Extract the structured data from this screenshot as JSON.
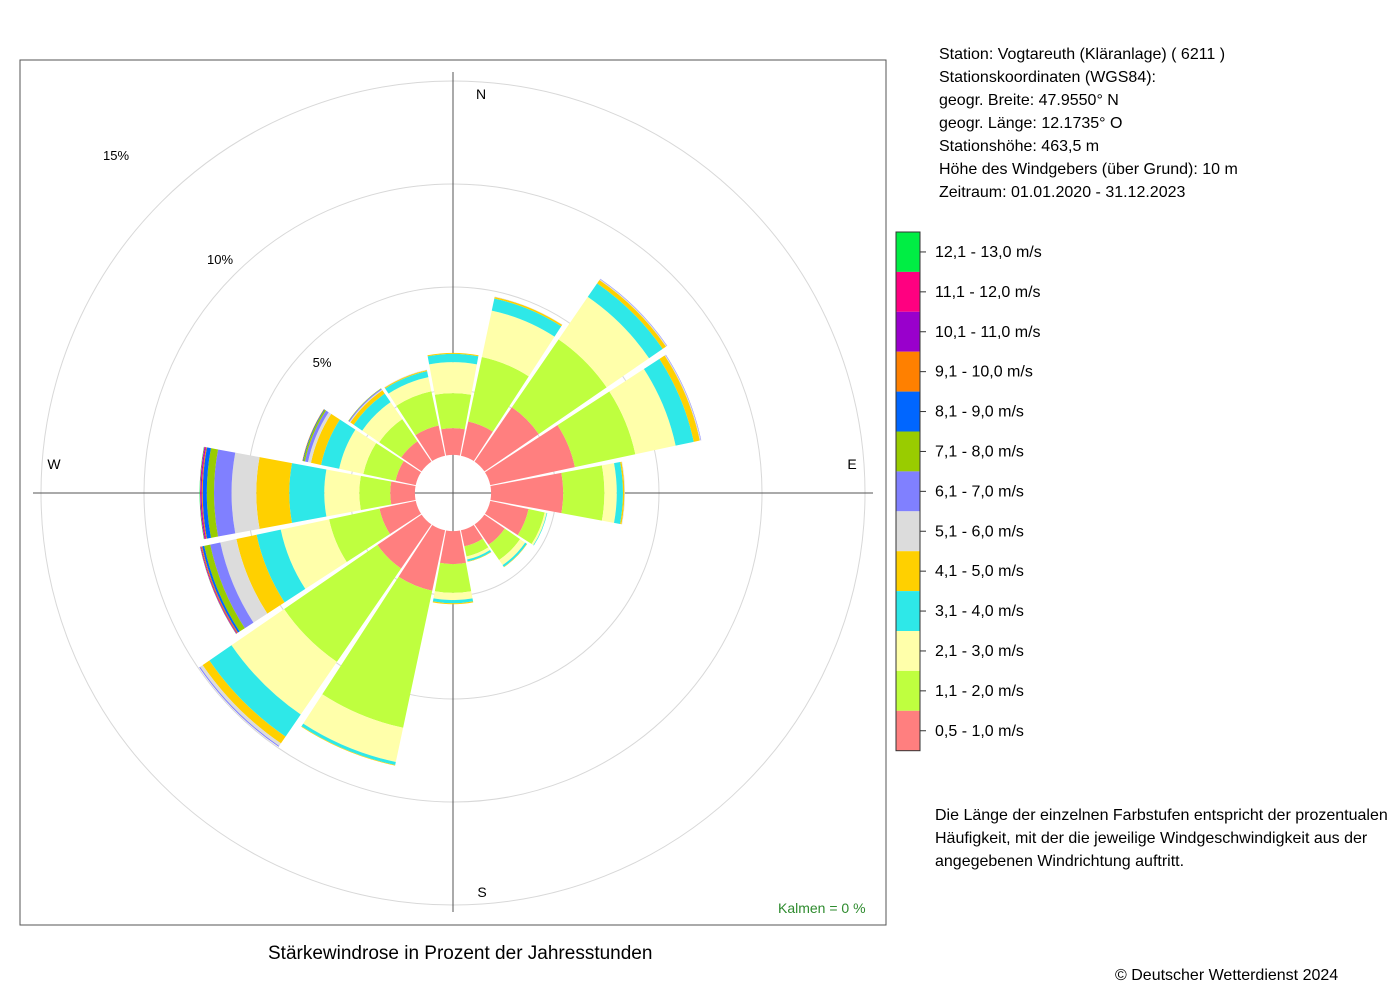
{
  "title": "Stärkewindrose in Prozent der Jahresstunden",
  "copyright": "© Deutscher Wetterdienst  2024",
  "calm_label": "Kalmen  =  0 %",
  "station_info": [
    "Station:  Vogtareuth (Kläranlage)  ( 6211 )",
    "Stationskoordinaten (WGS84):",
    "geogr. Breite: 47.9550° N",
    "geogr. Länge: 12.1735° O",
    "Stationshöhe: 463,5 m",
    "Höhe des Windgebers (über Grund): 10 m",
    "Zeitraum: 01.01.2020 - 31.12.2023"
  ],
  "note": "Die Länge der einzelnen Farbstufen entspricht der prozentualen Häufigkeit, mit der die jeweilige Windgeschwindigkeit aus der angegebenen Windrichtung auftritt.",
  "chart_data": {
    "type": "windrose",
    "directions": [
      "N",
      "NE-N",
      "NE",
      "E-NE",
      "E",
      "SE-E",
      "SE",
      "S-SE",
      "S",
      "SW-S",
      "SW",
      "W-SW",
      "W",
      "NW-W",
      "NW",
      "N-NW"
    ],
    "direction_angles_deg": [
      0,
      22.5,
      45,
      67.5,
      90,
      112.5,
      135,
      157.5,
      180,
      202.5,
      225,
      247.5,
      270,
      292.5,
      315,
      337.5
    ],
    "compass_labels": [
      "N",
      "E",
      "S",
      "W"
    ],
    "ring_labels": [
      "5%",
      "10%",
      "15%"
    ],
    "ring_values": [
      5,
      10,
      15,
      20
    ],
    "rmax": 17,
    "inner_offset_percent": 1.0,
    "speed_classes": [
      {
        "label": "0,5 - 1,0 m/s",
        "color": "#FF7F7F"
      },
      {
        "label": "1,1 - 2,0 m/s",
        "color": "#BFFF3F"
      },
      {
        "label": "2,1 - 3,0 m/s",
        "color": "#FFFFAA"
      },
      {
        "label": "3,1 - 4,0 m/s",
        "color": "#2EE8E8"
      },
      {
        "label": "4,1 - 5,0 m/s",
        "color": "#FFD000"
      },
      {
        "label": "5,1 - 6,0 m/s",
        "color": "#DCDCDC"
      },
      {
        "label": "6,1 - 7,0 m/s",
        "color": "#8080FF"
      },
      {
        "label": "7,1 - 8,0 m/s",
        "color": "#99CC00"
      },
      {
        "label": "8,1 - 9,0 m/s",
        "color": "#0066FF"
      },
      {
        "label": "9,1 - 10,0 m/s",
        "color": "#FF8000"
      },
      {
        "label": "10,1 - 11,0 m/s",
        "color": "#9900CC"
      },
      {
        "label": "11,1 - 12,0 m/s",
        "color": "#FF0080"
      },
      {
        "label": "12,1 - 13,0 m/s",
        "color": "#00EE44"
      }
    ],
    "values": [
      [
        1.3,
        1.7,
        1.5,
        0.4,
        0.05,
        0,
        0,
        0,
        0,
        0,
        0,
        0,
        0
      ],
      [
        1.7,
        3.2,
        2.3,
        0.6,
        0.08,
        0.02,
        0,
        0,
        0,
        0,
        0,
        0,
        0
      ],
      [
        3.2,
        4.0,
        2.5,
        0.8,
        0.2,
        0.05,
        0.02,
        0,
        0,
        0,
        0,
        0,
        0
      ],
      [
        4.2,
        3.0,
        2.0,
        0.9,
        0.3,
        0.05,
        0.02,
        0,
        0,
        0,
        0,
        0,
        0
      ],
      [
        3.5,
        2.0,
        0.6,
        0.3,
        0.07,
        0.03,
        0,
        0,
        0,
        0,
        0,
        0,
        0
      ],
      [
        1.9,
        0.8,
        0.1,
        0.03,
        0,
        0,
        0,
        0,
        0,
        0,
        0,
        0,
        0
      ],
      [
        1.2,
        0.9,
        0.3,
        0.1,
        0.02,
        0,
        0,
        0,
        0,
        0,
        0,
        0,
        0
      ],
      [
        0.8,
        0.5,
        0.15,
        0.1,
        0.02,
        0,
        0,
        0,
        0,
        0,
        0,
        0,
        0
      ],
      [
        1.6,
        1.4,
        0.35,
        0.15,
        0.05,
        0,
        0,
        0,
        0,
        0,
        0,
        0,
        0
      ],
      [
        3.0,
        6.8,
        1.7,
        0.15,
        0.03,
        0,
        0,
        0,
        0,
        0,
        0,
        0,
        0
      ],
      [
        2.6,
        5.5,
        3.1,
        1.3,
        0.4,
        0.15,
        0.05,
        0,
        0,
        0,
        0,
        0,
        0
      ],
      [
        1.8,
        2.5,
        2.4,
        1.2,
        1.0,
        0.8,
        0.5,
        0.3,
        0.1,
        0.05,
        0.03,
        0.02,
        0.01
      ],
      [
        1.2,
        1.5,
        1.7,
        1.7,
        1.6,
        1.2,
        0.85,
        0.35,
        0.2,
        0.05,
        0.05,
        0.03,
        0.02
      ],
      [
        1.0,
        1.6,
        1.2,
        0.9,
        0.5,
        0.15,
        0.15,
        0.08,
        0.03,
        0.02,
        0,
        0,
        0
      ],
      [
        1.2,
        1.3,
        1.0,
        0.5,
        0.2,
        0.05,
        0.05,
        0.02,
        0,
        0,
        0,
        0,
        0
      ],
      [
        1.5,
        1.7,
        0.7,
        0.3,
        0.05,
        0.02,
        0,
        0,
        0,
        0,
        0,
        0,
        0
      ]
    ]
  }
}
